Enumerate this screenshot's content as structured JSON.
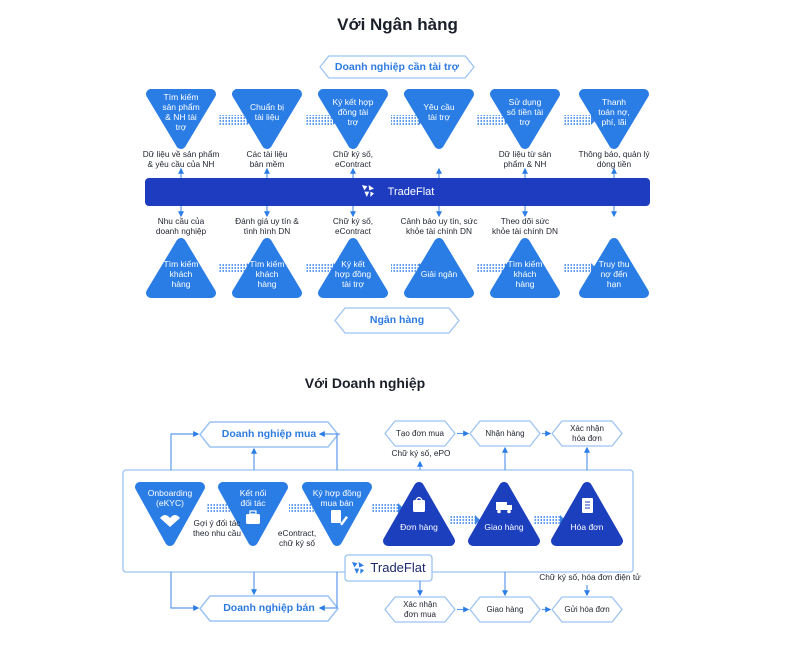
{
  "colors": {
    "light_blue": "#2b7de6",
    "dark_blue": "#1b3fbd",
    "outline": "#9cc3f2",
    "bar": "#1d3cc0"
  },
  "bank": {
    "title": "Với Ngân hàng",
    "top_box": "Doanh nghiệp cần tài trợ",
    "bottom_box": "Ngân hàng",
    "platform": "TradeFlat",
    "top_steps": [
      {
        "label": "Tìm kiếm\nsản phẩm\n& NH tài\ntrợ",
        "note": "Dữ liệu về sản phẩm\n& yêu cầu của NH"
      },
      {
        "label": "Chuẩn bị\ntài liệu",
        "note": "Các tài liệu\nbản mềm"
      },
      {
        "label": "Ký kết hợp\nđồng tài\ntrợ",
        "note": "Chữ ký số,\neContract"
      },
      {
        "label": "Yêu cầu\ntài trợ",
        "note": ""
      },
      {
        "label": "Sử dụng\nsố tiền tài\ntrợ",
        "note": "Dữ liệu từ sản\nphẩm & NH"
      },
      {
        "label": "Thanh\ntoán nợ,\nphí, lãi",
        "note": "Thông báo, quản lý\ndòng tiền"
      }
    ],
    "bottom_steps": [
      {
        "label": "Tìm kiếm\nkhách\nhàng",
        "note": "Nhu cầu của\ndoanh nghiệp"
      },
      {
        "label": "Tìm kiếm\nkhách\nhàng",
        "note": "Đánh giá uy tín &\ntình hình DN"
      },
      {
        "label": "Ký kết\nhợp đồng\ntài trợ",
        "note": "Chữ ký số,\neContract"
      },
      {
        "label": "Giải ngân",
        "note": "Cảnh báo uy tín, sức\nkhỏe tài chính DN"
      },
      {
        "label": "Tìm kiếm\nkhách\nhàng",
        "note": "Theo dõi sức\nkhỏe tài chính DN"
      },
      {
        "label": "Truy thu\nnợ đến\nhạn",
        "note": ""
      }
    ]
  },
  "business": {
    "title": "Với Doanh nghiệp",
    "buyer": "Doanh nghiệp mua",
    "seller": "Doanh nghiệp bán",
    "platform": "TradeFlat",
    "steps": [
      {
        "label": "Onboarding\n(eKYC)",
        "icon": "handshake-icon"
      },
      {
        "label": "Kết nối\nđối tác",
        "icon": "briefcase-icon"
      },
      {
        "label": "Ký hợp đồng\nmua bán",
        "icon": "contract-pen-icon"
      },
      {
        "label": "Đơn hàng",
        "icon": "shopping-bag-icon"
      },
      {
        "label": "Giao hàng",
        "icon": "delivery-truck-icon"
      },
      {
        "label": "Hóa đơn",
        "icon": "invoice-icon"
      }
    ],
    "notes": {
      "partner": "Gợi ý đối tác\ntheo nhu cầu",
      "contract": "eContract,\nchữ ký số",
      "po": "Chữ ký số, ePO",
      "einvoice": "Chữ ký số, hóa đơn điện tử"
    },
    "buyer_flow": [
      "Tạo đơn mua",
      "Nhận hàng",
      "Xác nhận\nhóa đơn"
    ],
    "seller_flow": [
      "Xác nhận\nđơn mua",
      "Giao hàng",
      "Gửi hóa đơn"
    ]
  }
}
